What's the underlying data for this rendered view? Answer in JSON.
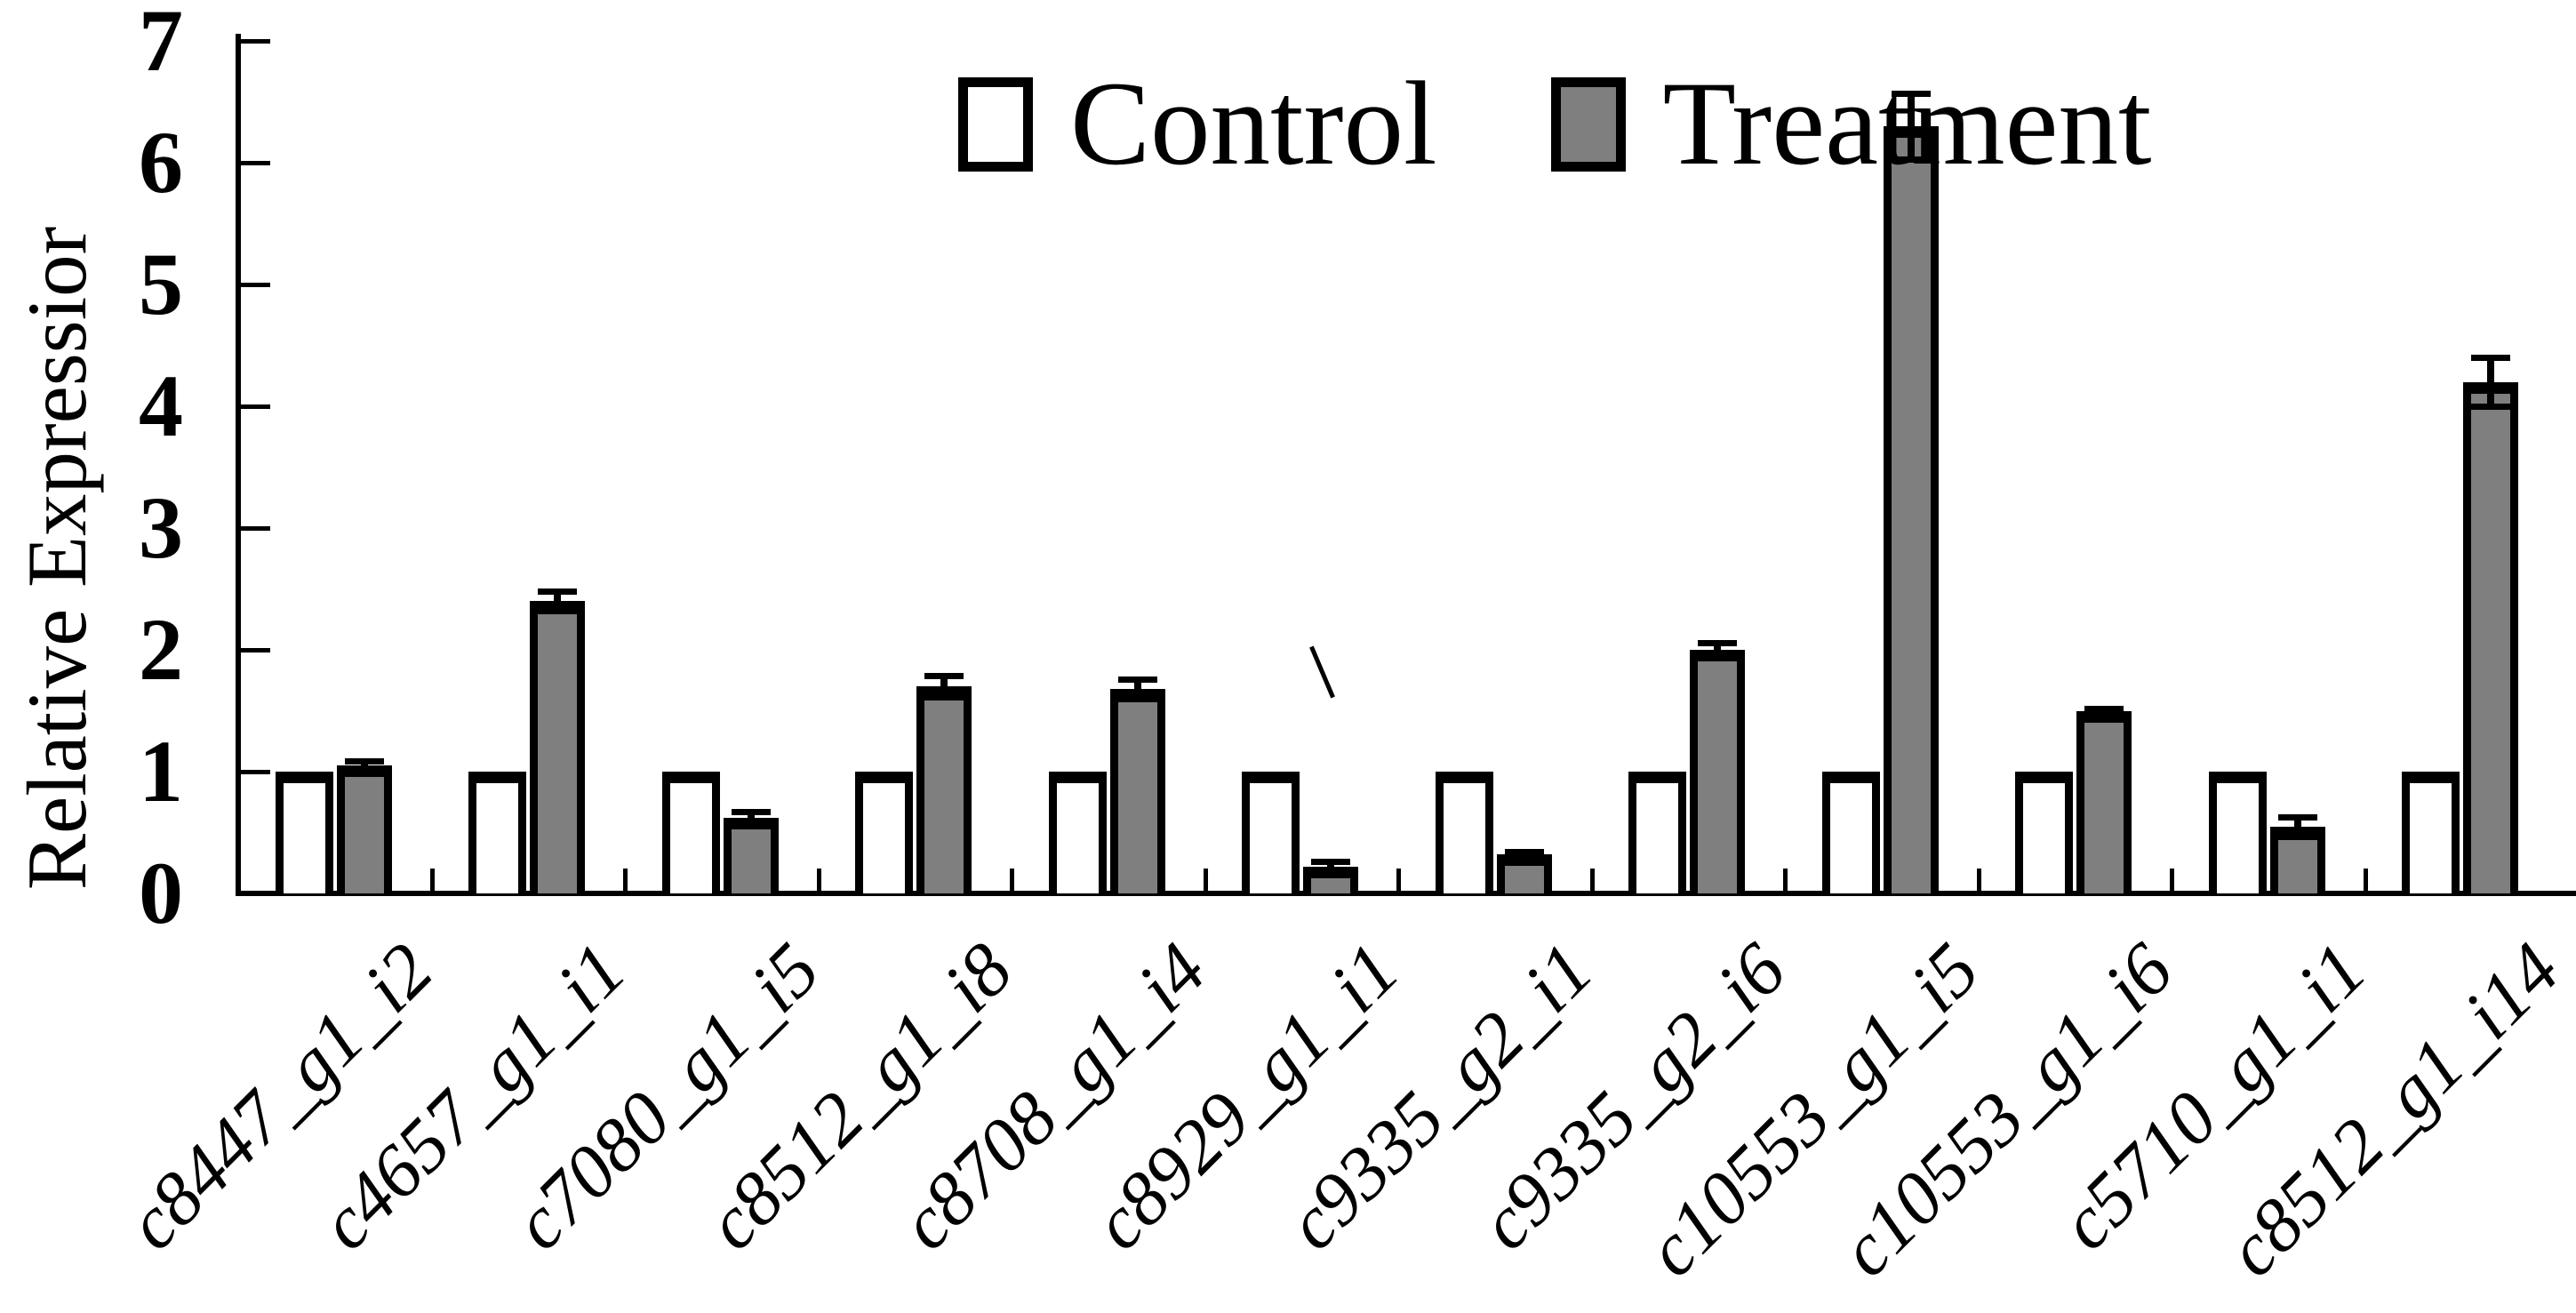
{
  "figure": {
    "background": "#ffffff",
    "axis_color": "#000000"
  },
  "legend": {
    "control_label": "Control",
    "treatment_label": "Treatment"
  },
  "chart_data": {
    "type": "bar",
    "title": "",
    "xlabel": "",
    "ylabel": "Relative Expressior",
    "ylim": [
      0,
      7
    ],
    "yticks": [
      0,
      1,
      2,
      3,
      4,
      5,
      6,
      7
    ],
    "grid": false,
    "legend_position": "top-center",
    "bar_colors": {
      "control": "#ffffff",
      "treatment": "#7f7f7f"
    },
    "bar_border_color": "#000000",
    "error_bar_color": "#000000",
    "categories": [
      "c8447_g1_i2",
      "c4657_g1_i1",
      "c7080_g1_i5",
      "c8512_g1_i8",
      "c8708_g1_i4",
      "c8929_g1_i1",
      "c9335_g2_i1",
      "c9335_g2_i6",
      "c10553_g1_i5",
      "c10553_g1_i6",
      "c5710_g1_i1",
      "c8512_g1_i14"
    ],
    "series": [
      {
        "name": "Control",
        "values": [
          1,
          1,
          1,
          1,
          1,
          1,
          1,
          1,
          1,
          1,
          1,
          1
        ],
        "errors": [
          0,
          0,
          0,
          0,
          0,
          0,
          0,
          0,
          0,
          0,
          0,
          0
        ]
      },
      {
        "name": "Treatment",
        "values": [
          1.05,
          2.4,
          0.62,
          1.7,
          1.68,
          0.22,
          0.32,
          2.0,
          6.3,
          1.5,
          0.55,
          4.2
        ],
        "errors": [
          0.04,
          0.08,
          0.05,
          0.09,
          0.08,
          0.04,
          0.02,
          0.06,
          0.27,
          0.02,
          0.08,
          0.2
        ]
      }
    ],
    "annotations": [
      {
        "type": "stray-mark",
        "shape": "backslash"
      }
    ]
  }
}
